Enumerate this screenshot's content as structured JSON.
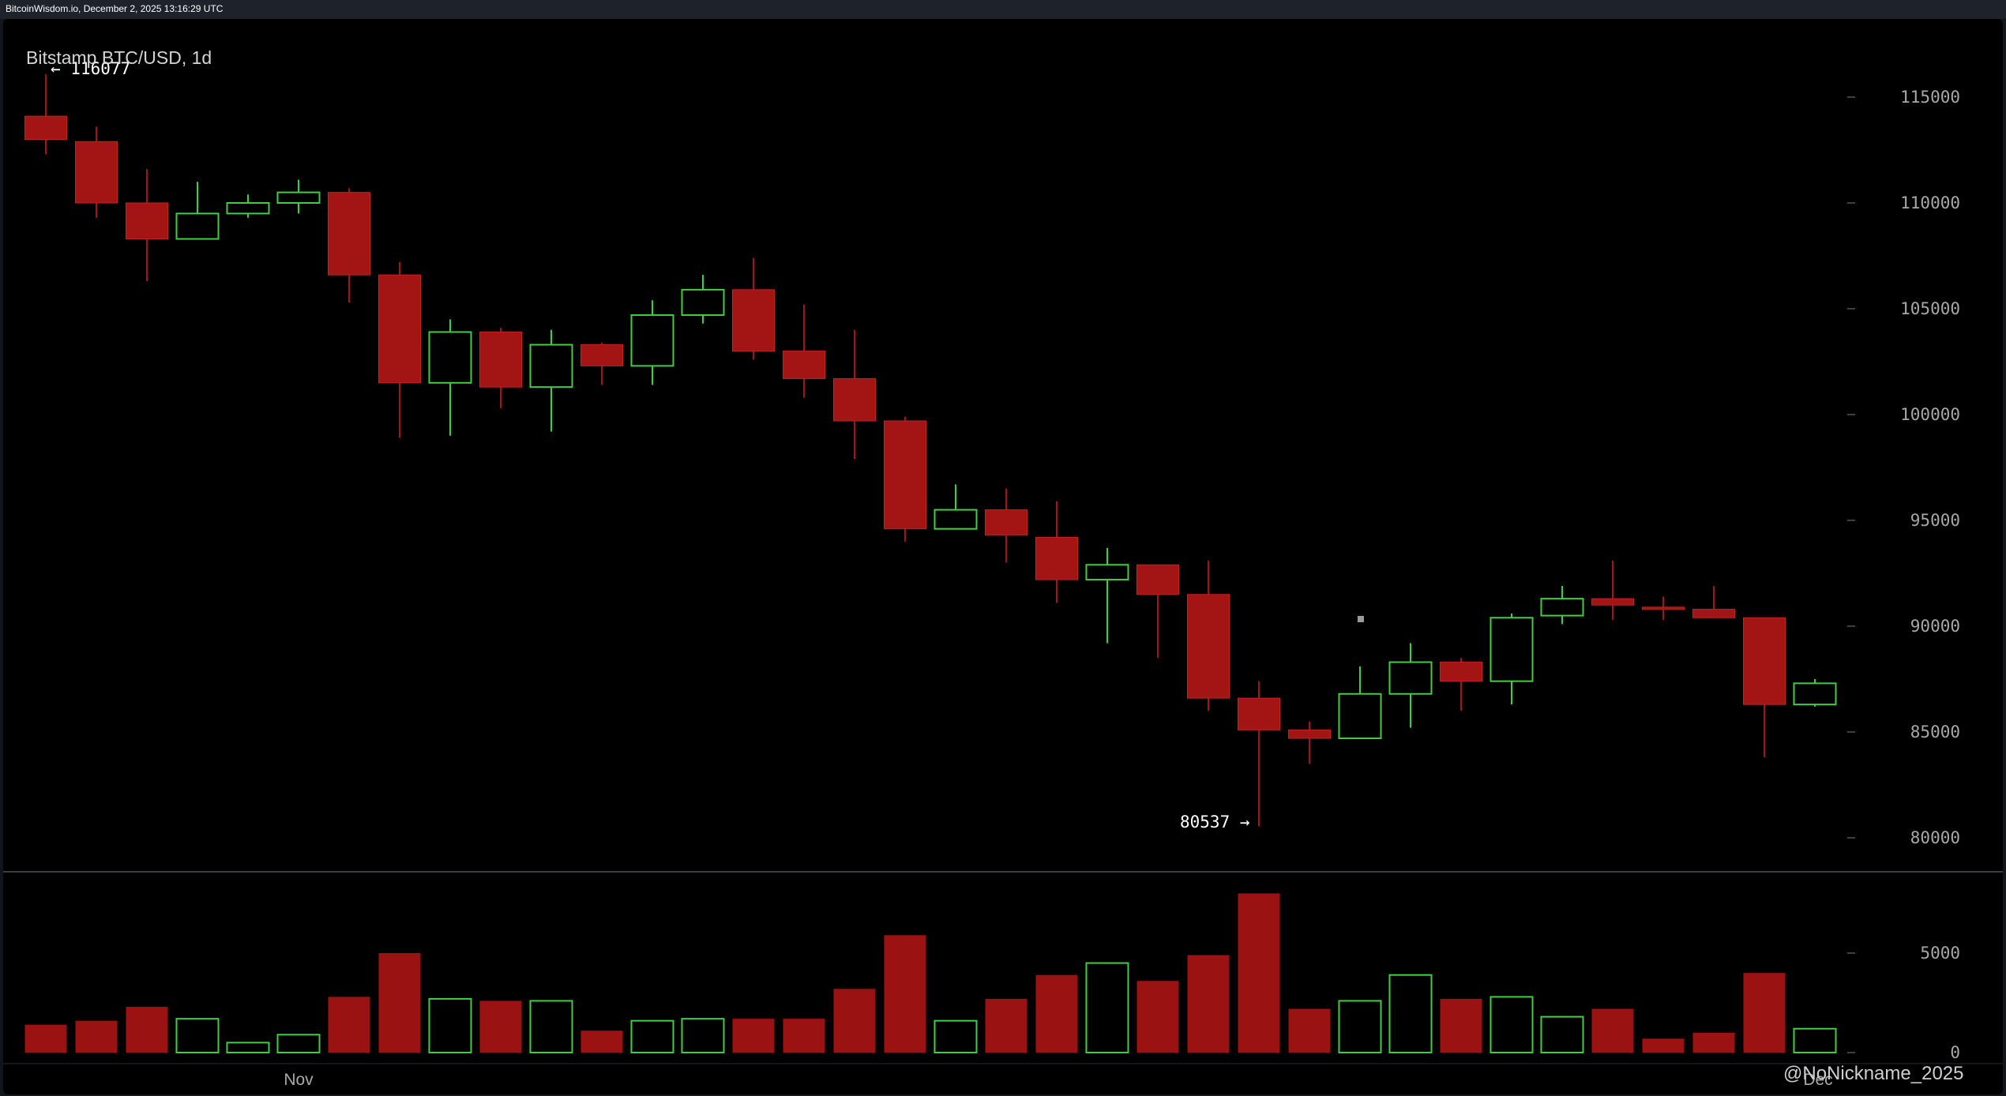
{
  "header": {
    "source_text": "BitcoinWisdom.io, December 2, 2025 13:16:29 UTC"
  },
  "chart": {
    "title": "Bitstamp BTC/USD, 1d",
    "high_label": "← 116077",
    "low_label": "80537 →",
    "x_label": "Nov",
    "x_label_right": "Dec",
    "watermark": "@NoNickname_2025"
  },
  "colors": {
    "up": "#3fce3f",
    "down": "#a31414",
    "down_volume": "#9b1212",
    "background": "#000000",
    "axis_text": "#a8a8a8"
  },
  "chart_data": [
    {
      "type": "candlestick",
      "title": "Bitstamp BTC/USD, 1d",
      "ylim": [
        78500,
        117500
      ],
      "y_ticks": [
        80000,
        85000,
        90000,
        95000,
        100000,
        105000,
        110000,
        115000
      ],
      "candles": [
        {
          "o": 114100,
          "h": 116077,
          "l": 112300,
          "c": 113000
        },
        {
          "o": 112900,
          "h": 113600,
          "l": 109300,
          "c": 110000
        },
        {
          "o": 110000,
          "h": 111600,
          "l": 106300,
          "c": 108300
        },
        {
          "o": 108300,
          "h": 111000,
          "l": 108300,
          "c": 109500
        },
        {
          "o": 109500,
          "h": 110400,
          "l": 109300,
          "c": 110000
        },
        {
          "o": 110000,
          "h": 111100,
          "l": 109500,
          "c": 110500
        },
        {
          "o": 110500,
          "h": 110700,
          "l": 105300,
          "c": 106600
        },
        {
          "o": 106600,
          "h": 107200,
          "l": 98900,
          "c": 101500
        },
        {
          "o": 101500,
          "h": 104500,
          "l": 99000,
          "c": 103900
        },
        {
          "o": 103900,
          "h": 104100,
          "l": 100300,
          "c": 101300
        },
        {
          "o": 101300,
          "h": 104000,
          "l": 99200,
          "c": 103300
        },
        {
          "o": 103300,
          "h": 103400,
          "l": 101400,
          "c": 102300
        },
        {
          "o": 102300,
          "h": 105400,
          "l": 101400,
          "c": 104700
        },
        {
          "o": 104700,
          "h": 106600,
          "l": 104300,
          "c": 105900
        },
        {
          "o": 105900,
          "h": 107400,
          "l": 102600,
          "c": 103000
        },
        {
          "o": 103000,
          "h": 105200,
          "l": 100800,
          "c": 101700
        },
        {
          "o": 101700,
          "h": 104000,
          "l": 97900,
          "c": 99700
        },
        {
          "o": 99700,
          "h": 99900,
          "l": 94000,
          "c": 94600
        },
        {
          "o": 94600,
          "h": 96700,
          "l": 94600,
          "c": 95500
        },
        {
          "o": 95500,
          "h": 96500,
          "l": 93000,
          "c": 94300
        },
        {
          "o": 94200,
          "h": 95900,
          "l": 91100,
          "c": 92200
        },
        {
          "o": 92200,
          "h": 93700,
          "l": 89200,
          "c": 92900
        },
        {
          "o": 92900,
          "h": 92900,
          "l": 88500,
          "c": 91500
        },
        {
          "o": 91500,
          "h": 93100,
          "l": 86000,
          "c": 86600
        },
        {
          "o": 86600,
          "h": 87400,
          "l": 80537,
          "c": 85100
        },
        {
          "o": 85100,
          "h": 85500,
          "l": 83500,
          "c": 84700
        },
        {
          "o": 84700,
          "h": 88100,
          "l": 84700,
          "c": 86800
        },
        {
          "o": 86800,
          "h": 89200,
          "l": 85200,
          "c": 88300
        },
        {
          "o": 88300,
          "h": 88500,
          "l": 86000,
          "c": 87400
        },
        {
          "o": 87400,
          "h": 90600,
          "l": 86300,
          "c": 90400
        },
        {
          "o": 90500,
          "h": 91900,
          "l": 90100,
          "c": 91300
        },
        {
          "o": 91300,
          "h": 93100,
          "l": 90300,
          "c": 91000
        },
        {
          "o": 90900,
          "h": 91400,
          "l": 90300,
          "c": 90800
        },
        {
          "o": 90800,
          "h": 91900,
          "l": 90500,
          "c": 90400
        },
        {
          "o": 90400,
          "h": 90400,
          "l": 83800,
          "c": 86300
        },
        {
          "o": 86300,
          "h": 87500,
          "l": 86200,
          "c": 87300
        }
      ]
    },
    {
      "type": "bar",
      "title": "Volume",
      "ylim": [
        0,
        8200
      ],
      "y_ticks": [
        0,
        5000
      ],
      "values": [
        1400,
        1600,
        2300,
        1700,
        500,
        900,
        2800,
        5000,
        2700,
        2600,
        2600,
        1100,
        1600,
        1700,
        1700,
        1700,
        3200,
        5900,
        1600,
        2700,
        3900,
        4500,
        3600,
        4900,
        8000,
        2200,
        2600,
        3900,
        2700,
        2800,
        1800,
        2200,
        700,
        1000,
        4000,
        1200
      ]
    }
  ]
}
